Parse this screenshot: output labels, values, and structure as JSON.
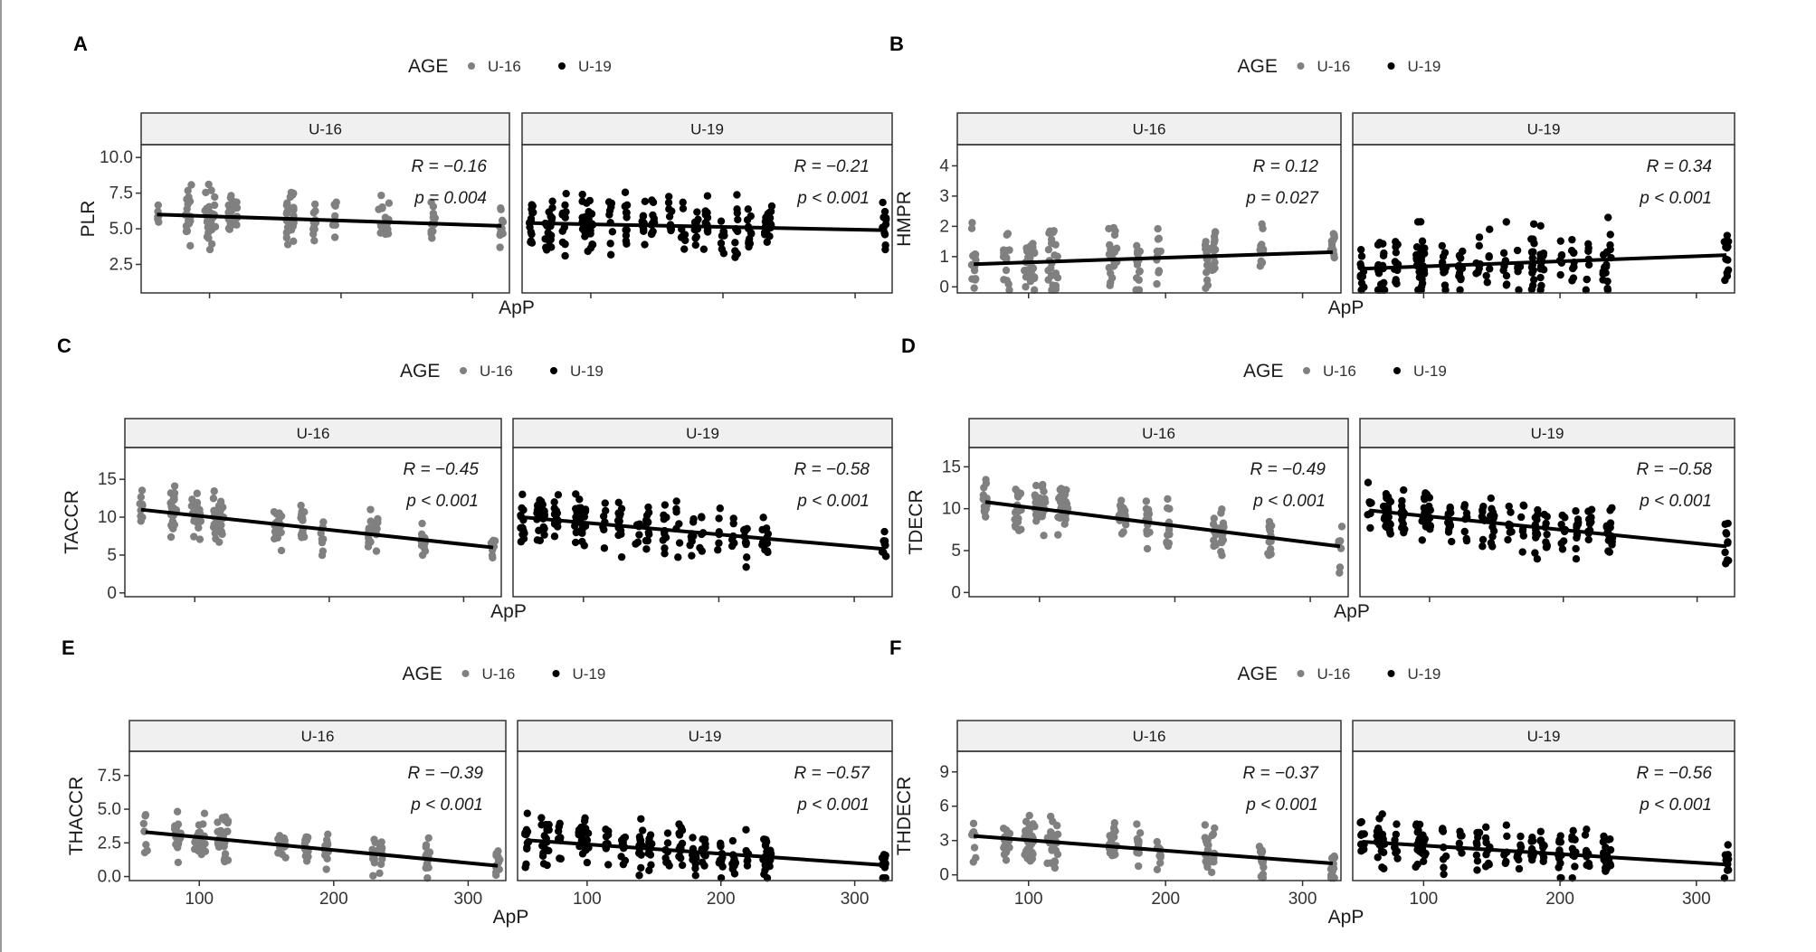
{
  "legend": {
    "title": "AGE",
    "items": [
      "U-16",
      "U-19"
    ],
    "colors": [
      "#808080",
      "#000000"
    ]
  },
  "chart_data": [
    {
      "type": "scatter",
      "label": "A",
      "ylabel": "PLR",
      "xlabel": "ApP",
      "xlim": [
        48,
        328
      ],
      "ylim": [
        0.5,
        10.9
      ],
      "yticks": [
        "2.5",
        "5.0",
        "7.5",
        "10.0"
      ],
      "ytick_values": [
        2.5,
        5,
        7.5,
        10
      ],
      "xticks": [
        "100",
        "200",
        "300"
      ],
      "xtick_values": [
        100,
        200,
        300
      ],
      "show_xtick_labels": false,
      "spread": 1.5,
      "facets": [
        {
          "strip": "U-16",
          "R": "R = −0.16",
          "p": "p = 0.004",
          "line": [
            [
              60,
              6.0
            ],
            [
              322,
              5.2
            ]
          ]
        },
        {
          "strip": "U-19",
          "R": "R = −0.21",
          "p": "p < 0.001",
          "line": [
            [
              55,
              5.4
            ],
            [
              322,
              4.9
            ]
          ]
        }
      ]
    },
    {
      "type": "scatter",
      "label": "B",
      "ylabel": "HMPR",
      "xlabel": "ApP",
      "xlim": [
        48,
        328
      ],
      "ylim": [
        -0.2,
        4.7
      ],
      "yticks": [
        "0",
        "1",
        "2",
        "3",
        "4"
      ],
      "ytick_values": [
        0,
        1,
        2,
        3,
        4
      ],
      "xticks": [
        "100",
        "200",
        "300"
      ],
      "xtick_values": [
        100,
        200,
        300
      ],
      "show_xtick_labels": false,
      "spread": 0.9,
      "facets": [
        {
          "strip": "U-16",
          "R": "R = 0.12",
          "p": "p = 0.027",
          "line": [
            [
              60,
              0.75
            ],
            [
              322,
              1.15
            ]
          ]
        },
        {
          "strip": "U-19",
          "R": "R = 0.34",
          "p": "p < 0.001",
          "line": [
            [
              55,
              0.6
            ],
            [
              322,
              1.05
            ]
          ]
        }
      ]
    },
    {
      "type": "scatter",
      "label": "C",
      "ylabel": "TACCR",
      "xlabel": "ApP",
      "xlim": [
        48,
        328
      ],
      "ylim": [
        -0.5,
        19.2
      ],
      "yticks": [
        "0",
        "5",
        "10",
        "15"
      ],
      "ytick_values": [
        0,
        5,
        10,
        15
      ],
      "xticks": [
        "100",
        "200",
        "300"
      ],
      "xtick_values": [
        100,
        200,
        300
      ],
      "show_xtick_labels": false,
      "spread": 2.6,
      "facets": [
        {
          "strip": "U-16",
          "R": "R = −0.45",
          "p": "p < 0.001",
          "line": [
            [
              60,
              11.0
            ],
            [
              322,
              6.0
            ]
          ]
        },
        {
          "strip": "U-19",
          "R": "R = −0.58",
          "p": "p < 0.001",
          "line": [
            [
              55,
              10.0
            ],
            [
              322,
              5.8
            ]
          ]
        }
      ]
    },
    {
      "type": "scatter",
      "label": "D",
      "ylabel": "TDECR",
      "xlabel": "ApP",
      "xlim": [
        48,
        328
      ],
      "ylim": [
        -0.5,
        17.3
      ],
      "yticks": [
        "0",
        "5",
        "10",
        "15"
      ],
      "ytick_values": [
        0,
        5,
        10,
        15
      ],
      "xticks": [
        "100",
        "200",
        "300"
      ],
      "xtick_values": [
        100,
        200,
        300
      ],
      "show_xtick_labels": false,
      "spread": 2.5,
      "facets": [
        {
          "strip": "U-16",
          "R": "R = −0.49",
          "p": "p < 0.001",
          "line": [
            [
              60,
              10.8
            ],
            [
              322,
              5.5
            ]
          ]
        },
        {
          "strip": "U-19",
          "R": "R = −0.58",
          "p": "p < 0.001",
          "line": [
            [
              55,
              9.8
            ],
            [
              322,
              5.5
            ]
          ]
        }
      ]
    },
    {
      "type": "scatter",
      "label": "E",
      "ylabel": "THACCR",
      "xlabel": "ApP",
      "xlim": [
        48,
        328
      ],
      "ylim": [
        -0.3,
        9.3
      ],
      "yticks": [
        "0.0",
        "2.5",
        "5.0",
        "7.5"
      ],
      "ytick_values": [
        0,
        2.5,
        5,
        7.5
      ],
      "xticks": [
        "100",
        "200",
        "300"
      ],
      "xtick_values": [
        100,
        200,
        300
      ],
      "show_xtick_labels": true,
      "spread": 1.4,
      "facets": [
        {
          "strip": "U-16",
          "R": "R = −0.39",
          "p": "p < 0.001",
          "line": [
            [
              60,
              3.3
            ],
            [
              322,
              0.8
            ]
          ]
        },
        {
          "strip": "U-19",
          "R": "R = −0.57",
          "p": "p < 0.001",
          "line": [
            [
              55,
              2.7
            ],
            [
              322,
              0.85
            ]
          ]
        }
      ]
    },
    {
      "type": "scatter",
      "label": "F",
      "ylabel": "THDECR",
      "xlabel": "ApP",
      "xlim": [
        48,
        328
      ],
      "ylim": [
        -0.5,
        10.8
      ],
      "yticks": [
        "0",
        "3",
        "6",
        "9"
      ],
      "ytick_values": [
        0,
        3,
        6,
        9
      ],
      "xticks": [
        "100",
        "200",
        "300"
      ],
      "xtick_values": [
        100,
        200,
        300
      ],
      "show_xtick_labels": true,
      "spread": 1.6,
      "facets": [
        {
          "strip": "U-16",
          "R": "R = −0.37",
          "p": "p < 0.001",
          "line": [
            [
              60,
              3.4
            ],
            [
              322,
              1.0
            ]
          ]
        },
        {
          "strip": "U-19",
          "R": "R = −0.56",
          "p": "p < 0.001",
          "line": [
            [
              55,
              2.9
            ],
            [
              322,
              0.9
            ]
          ]
        }
      ]
    }
  ],
  "point_columns_apP": {
    "U-16": [
      60,
      83,
      85,
      98,
      100,
      103,
      115,
      118,
      120,
      160,
      163,
      180,
      195,
      230,
      235,
      270,
      322
    ],
    "U-19": [
      55,
      67,
      70,
      80,
      95,
      98,
      100,
      115,
      127,
      140,
      147,
      160,
      170,
      180,
      187,
      200,
      210,
      220,
      233,
      236,
      322
    ]
  }
}
